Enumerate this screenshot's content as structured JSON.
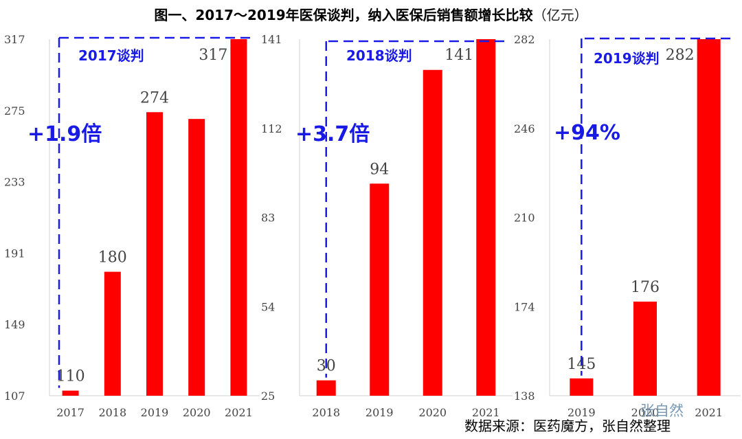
{
  "title_main": "图一、2017～2019年医保谈判，纳入医保后销售额增长比较",
  "title_unit": "（亿元）",
  "source": "数据来源：医药魔方，张自然整理",
  "watermark": "张自然",
  "colors": {
    "bar": "#ff0000",
    "annotation": "#1a1ae6"
  },
  "chart_data": [
    {
      "type": "bar",
      "categories": [
        "2017",
        "2018",
        "2019",
        "2020",
        "2021"
      ],
      "values": [
        110,
        180,
        274,
        270,
        317
      ],
      "data_labels": [
        "110",
        "180",
        "274",
        "",
        "317"
      ],
      "yticks": [
        "107",
        "149",
        "191",
        "233",
        "275",
        "317"
      ],
      "ylim": [
        107,
        317
      ],
      "negotiation_label": "2017谈判",
      "growth_label": "+1.9倍"
    },
    {
      "type": "bar",
      "categories": [
        "2018",
        "2019",
        "2020",
        "2021"
      ],
      "values": [
        30,
        94,
        131,
        141
      ],
      "data_labels": [
        "30",
        "94",
        "",
        "141"
      ],
      "yticks": [
        "25",
        "54",
        "83",
        "112",
        "141"
      ],
      "ylim": [
        25,
        141
      ],
      "negotiation_label": "2018谈判",
      "growth_label": "+3.7倍"
    },
    {
      "type": "bar",
      "categories": [
        "2019",
        "2020",
        "2021"
      ],
      "values": [
        145,
        176,
        282
      ],
      "data_labels": [
        "145",
        "176",
        "282"
      ],
      "yticks": [
        "138",
        "174",
        "210",
        "246",
        "282"
      ],
      "ylim": [
        138,
        282
      ],
      "negotiation_label": "2019谈判",
      "growth_label": "+94%"
    }
  ]
}
